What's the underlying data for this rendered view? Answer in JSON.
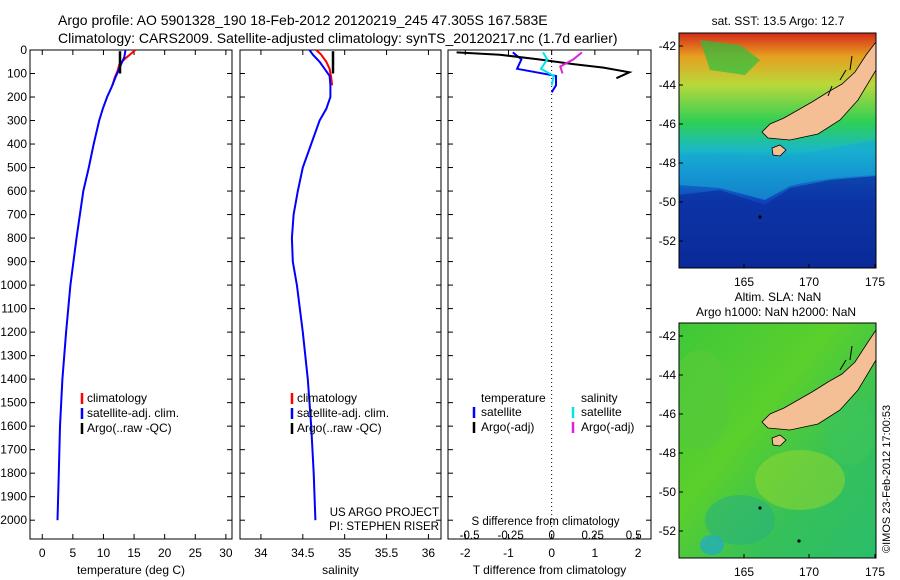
{
  "header": {
    "line1": "Argo profile: AO 5901328_190 18-Feb-2012 20120219_245 47.305S 167.583E",
    "line2": "Climatology: CARS2009. Satellite-adjusted climatology: synTS_20120217.nc (1.7d earlier)"
  },
  "colors": {
    "climatology": "#ff0000",
    "satellite": "#0000ff",
    "argo": "#000000",
    "sal_satellite": "#00e5e5",
    "sal_argo": "#dd22dd",
    "land": "#f4bf94"
  },
  "depth_axis": {
    "ticks": [
      0,
      100,
      200,
      300,
      400,
      500,
      600,
      700,
      800,
      900,
      1000,
      1100,
      1200,
      1300,
      1400,
      1500,
      1600,
      1700,
      1800,
      1900,
      2000
    ],
    "range": [
      0,
      2080
    ],
    "reversed": true
  },
  "chart_data": [
    {
      "id": "temperature",
      "type": "line",
      "xlabel": "temperature (deg C)",
      "xlim": [
        -2,
        31
      ],
      "xticks": [
        0,
        5,
        10,
        15,
        20,
        25,
        30
      ],
      "ylim": [
        0,
        2080
      ],
      "series": [
        {
          "name": "climatology",
          "color": "#ff0000",
          "x": [
            15.2,
            14.3,
            13.4,
            12.6,
            12.3,
            11.8,
            11.5
          ],
          "y": [
            0,
            20,
            40,
            60,
            90,
            120,
            150
          ]
        },
        {
          "name": "satellite-adj. clim.",
          "color": "#0000ff",
          "x": [
            13.6,
            13.4,
            12.9,
            12.4,
            11.9,
            11.3,
            10.6,
            9.9,
            9.3,
            8.4,
            7.6,
            6.7,
            5.6,
            4.6,
            3.9,
            3.3,
            2.9,
            2.7,
            2.5
          ],
          "y": [
            0,
            30,
            60,
            90,
            120,
            160,
            200,
            250,
            300,
            400,
            500,
            600,
            800,
            1000,
            1200,
            1400,
            1600,
            1800,
            2000
          ]
        },
        {
          "name": "Argo(..raw -QC)",
          "color": "#000000",
          "x": [
            12.7,
            12.7
          ],
          "y": [
            5,
            100
          ]
        }
      ],
      "legend": [
        "climatology",
        "satellite-adj. clim.",
        "Argo(..raw -QC)"
      ]
    },
    {
      "id": "salinity",
      "type": "line",
      "xlabel": "salinity",
      "xlim": [
        33.75,
        36.15
      ],
      "xticks": [
        34,
        34.5,
        35,
        35.5,
        36
      ],
      "ylim": [
        0,
        2080
      ],
      "series": [
        {
          "name": "climatology",
          "color": "#ff0000",
          "x": [
            34.66,
            34.72,
            34.78,
            34.82,
            34.84,
            34.85
          ],
          "y": [
            0,
            20,
            50,
            80,
            120,
            150
          ]
        },
        {
          "name": "satellite-adj. clim.",
          "color": "#0000ff",
          "x": [
            34.58,
            34.62,
            34.7,
            34.76,
            34.82,
            34.83,
            34.83,
            34.78,
            34.7,
            34.6,
            34.5,
            34.44,
            34.39,
            34.37,
            34.38,
            34.43,
            34.5,
            34.56,
            34.6,
            34.63,
            34.65
          ],
          "y": [
            0,
            20,
            50,
            80,
            110,
            150,
            200,
            250,
            300,
            400,
            500,
            600,
            700,
            800,
            900,
            1000,
            1200,
            1400,
            1600,
            1800,
            2000
          ]
        },
        {
          "name": "Argo(..raw -QC)",
          "color": "#000000",
          "x": [
            34.86,
            34.86
          ],
          "y": [
            5,
            100
          ]
        }
      ],
      "legend": [
        "climatology",
        "satellite-adj. clim.",
        "Argo(..raw -QC)"
      ],
      "annotations": [
        "US ARGO PROJECT",
        "PI: STEPHEN RISER"
      ]
    },
    {
      "id": "differences",
      "type": "line",
      "xlabel": "T difference from climatology",
      "xlabel_top": "S difference from climatology",
      "xlim": [
        -2.4,
        2.3
      ],
      "xticks": [
        -2,
        -1,
        0,
        1,
        2
      ],
      "xticks_s": [
        "-0.5",
        "-0.25",
        "0",
        "0.25",
        "0.5"
      ],
      "ylim": [
        0,
        2080
      ],
      "series": [
        {
          "name": "temperature satellite",
          "color": "#0000ff",
          "x": [
            -0.9,
            -0.7,
            -0.8,
            0.1,
            0.1,
            0.0
          ],
          "y": [
            10,
            40,
            80,
            110,
            150,
            180
          ]
        },
        {
          "name": "temperature Argo(-adj)",
          "color": "#000000",
          "x": [
            -2.2,
            -1.2,
            -0.3,
            0.5,
            1.2,
            1.8,
            1.5
          ],
          "y": [
            10,
            20,
            40,
            60,
            75,
            95,
            120
          ]
        },
        {
          "name": "salinity satellite",
          "color": "#00e5e5",
          "x": [
            -0.2,
            -0.1,
            -0.25,
            0.05,
            0.0
          ],
          "y": [
            10,
            40,
            80,
            110,
            150
          ]
        },
        {
          "name": "salinity Argo(-adj)",
          "color": "#dd22dd",
          "x": [
            0.7,
            0.5,
            0.2,
            0.25
          ],
          "y": [
            10,
            40,
            70,
            100
          ]
        }
      ],
      "legend_left_title": "temperature",
      "legend_left": [
        "satellite",
        "Argo(-adj)"
      ],
      "legend_right_title": "salinity",
      "legend_right": [
        "satellite",
        "Argo(-adj)"
      ]
    }
  ],
  "maps": {
    "top_title": "sat. SST: 13.5  Argo: 12.7",
    "bottom_title_1": "Altim. SLA: NaN",
    "bottom_title_2": "Argo h1000: NaN h2000: NaN",
    "lat_ticks": [
      "-42",
      "-44",
      "-46",
      "-48",
      "-50",
      "-52"
    ],
    "lon_ticks": [
      "165",
      "170",
      "175"
    ],
    "credit": "©IMOS 23-Feb-2012 17:00:53"
  }
}
